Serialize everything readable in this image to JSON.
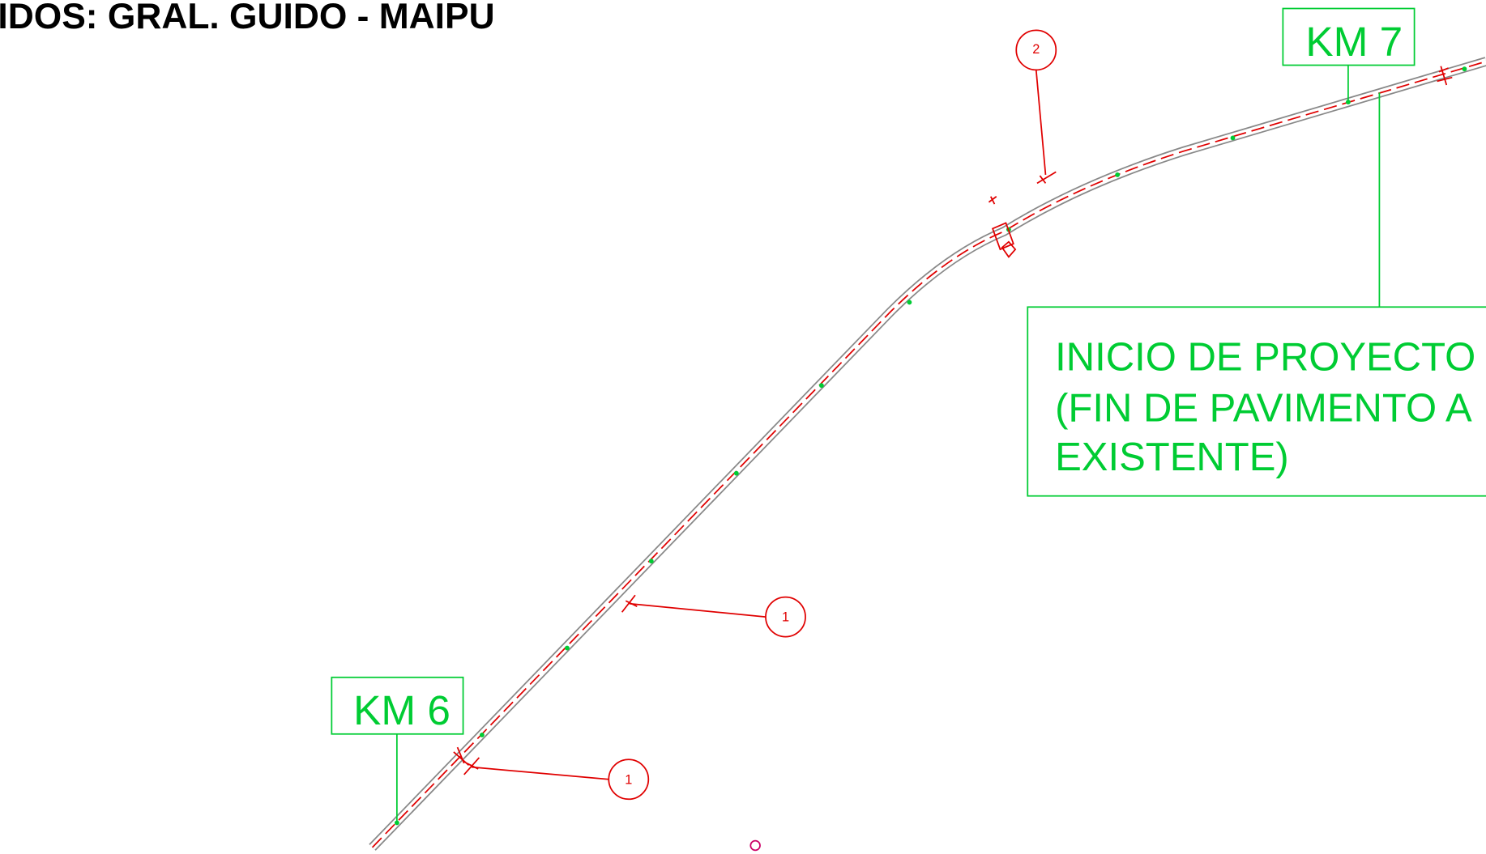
{
  "header": {
    "title": "IDOS: GRAL. GUIDO - MAIPU"
  },
  "markers": [
    {
      "label": "KM 7"
    },
    {
      "label": "KM 6"
    }
  ],
  "note": {
    "lines": [
      "INICIO DE PROYECTO",
      "(FIN DE PAVIMENTO A",
      "EXISTENTE)"
    ]
  },
  "callouts": [
    {
      "label": "2"
    },
    {
      "label": "1"
    },
    {
      "label": "1"
    }
  ]
}
